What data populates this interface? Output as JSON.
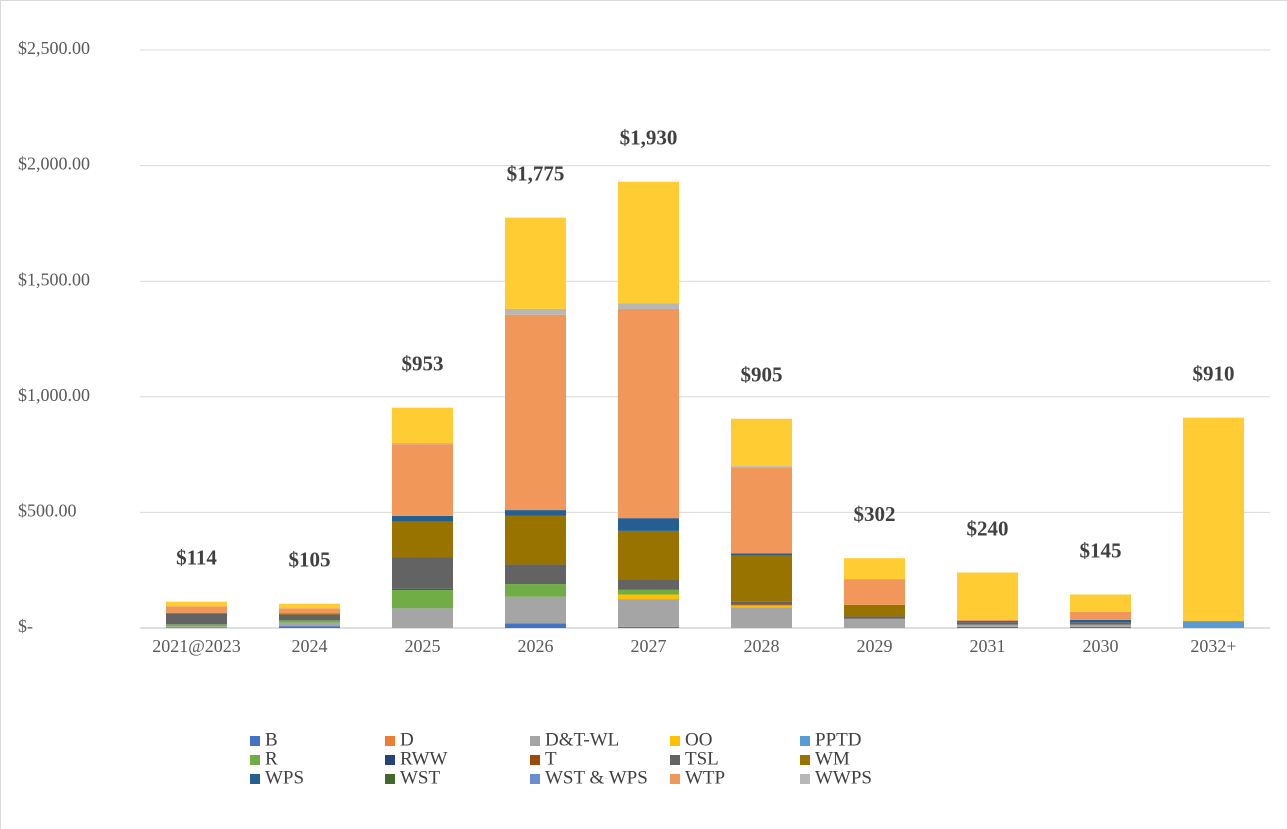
{
  "chart_data": {
    "type": "stacked_bar",
    "categories": [
      "2021@2023",
      "2024",
      "2025",
      "2026",
      "2027",
      "2028",
      "2029",
      "2031",
      "2030",
      "2032+"
    ],
    "series": [
      {
        "name": "B",
        "color": "#4472c4",
        "values": [
          2,
          8,
          0,
          20,
          5,
          0,
          0,
          5,
          5,
          0
        ]
      },
      {
        "name": "D",
        "color": "#ed7d31",
        "values": [
          0,
          0,
          0,
          0,
          0,
          0,
          0,
          0,
          0,
          0
        ]
      },
      {
        "name": "D&T-WL",
        "color": "#a5a5a5",
        "values": [
          6,
          15,
          85,
          115,
          120,
          90,
          40,
          10,
          10,
          0
        ]
      },
      {
        "name": "OO",
        "color": "#ffc000",
        "values": [
          0,
          0,
          0,
          0,
          20,
          8,
          0,
          0,
          0,
          0
        ]
      },
      {
        "name": "PPTD",
        "color": "#5b9bd5",
        "values": [
          0,
          0,
          0,
          0,
          0,
          0,
          0,
          0,
          0,
          30
        ]
      },
      {
        "name": "R",
        "color": "#70ad47",
        "values": [
          8,
          10,
          80,
          55,
          20,
          0,
          0,
          0,
          0,
          0
        ]
      },
      {
        "name": "RWW",
        "color": "#264478",
        "values": [
          0,
          0,
          5,
          0,
          0,
          0,
          0,
          0,
          0,
          0
        ]
      },
      {
        "name": "T",
        "color": "#9e480e",
        "values": [
          0,
          0,
          0,
          0,
          0,
          5,
          0,
          0,
          0,
          0
        ]
      },
      {
        "name": "TSL",
        "color": "#636363",
        "values": [
          45,
          25,
          135,
          85,
          45,
          10,
          10,
          10,
          10,
          0
        ]
      },
      {
        "name": "WM",
        "color": "#997300",
        "values": [
          5,
          5,
          155,
          210,
          210,
          200,
          50,
          0,
          0,
          0
        ]
      },
      {
        "name": "WPS",
        "color": "#255e91",
        "values": [
          0,
          0,
          25,
          25,
          55,
          10,
          0,
          5,
          10,
          0
        ]
      },
      {
        "name": "WST",
        "color": "#43682b",
        "values": [
          0,
          0,
          0,
          0,
          0,
          0,
          0,
          0,
          0,
          0
        ]
      },
      {
        "name": "WST & WPS",
        "color": "#698ed0",
        "values": [
          0,
          0,
          0,
          0,
          0,
          0,
          0,
          0,
          0,
          0
        ]
      },
      {
        "name": "WTP",
        "color": "#f1975a",
        "values": [
          28,
          22,
          310,
          845,
          905,
          372,
          110,
          5,
          35,
          0
        ]
      },
      {
        "name": "WWPS",
        "color": "#b7b7b7",
        "values": [
          0,
          0,
          5,
          25,
          25,
          5,
          2,
          0,
          0,
          0
        ]
      },
      {
        "name": null,
        "color": "#ffcd33",
        "values": [
          20,
          20,
          153,
          395,
          525,
          205,
          90,
          205,
          75,
          880
        ]
      }
    ],
    "totals": [
      114,
      105,
      953,
      1775,
      1930,
      905,
      302,
      240,
      145,
      910
    ],
    "total_labels": [
      "$114",
      "$105",
      "$953",
      "$1,775",
      "$1,930",
      "$905",
      "$302",
      "$240",
      "$145",
      "$910"
    ],
    "ylim": [
      0,
      2500
    ],
    "yticks": [
      {
        "value": 0,
        "label": "$-"
      },
      {
        "value": 500,
        "label": "$500.00"
      },
      {
        "value": 1000,
        "label": "$1,000.00"
      },
      {
        "value": 1500,
        "label": "$1,500.00"
      },
      {
        "value": 2000,
        "label": "$2,000.00"
      },
      {
        "value": 2500,
        "label": "$2,500.00"
      }
    ],
    "grid": true,
    "legend": "bottom"
  }
}
